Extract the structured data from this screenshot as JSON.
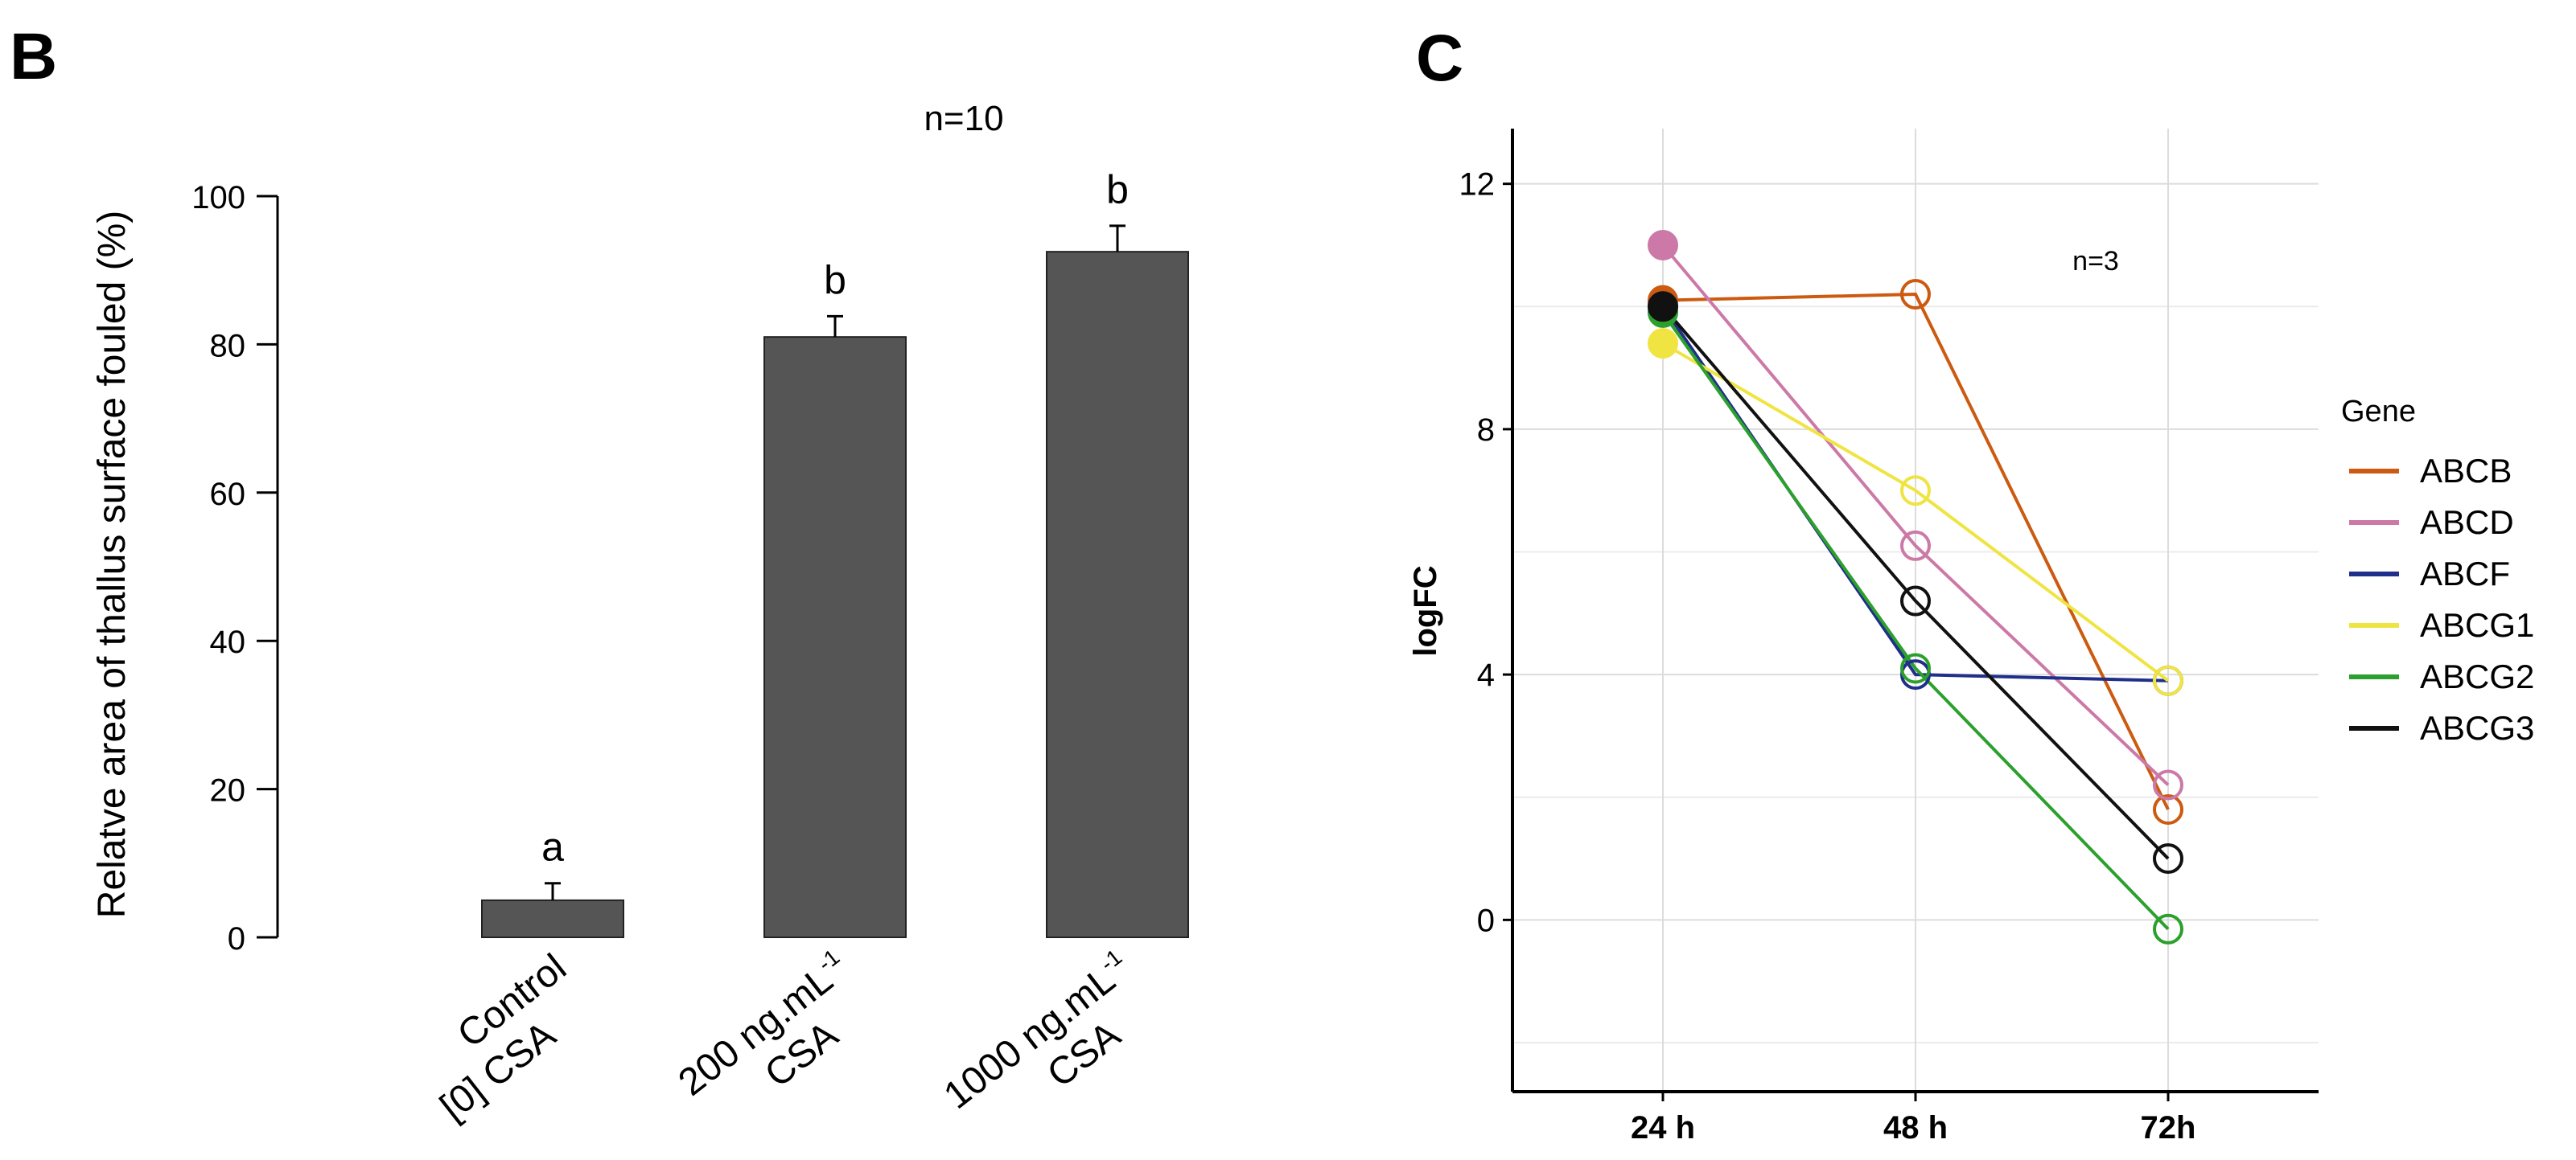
{
  "chart_data": [
    {
      "type": "bar",
      "panel_label": "B",
      "annotation": "n=10",
      "ylabel": "Relatve area of thallus surface fouled (%)",
      "ylim": [
        0,
        100
      ],
      "yticks": [
        0,
        20,
        40,
        60,
        80,
        100
      ],
      "categories": [
        {
          "line1": "Control",
          "line2": "[0] CSA"
        },
        {
          "line1": "200 ng.mL",
          "sup": "-1",
          "line2": "CSA"
        },
        {
          "line1": "1000 ng.mL",
          "sup": "-1",
          "line2": "CSA"
        }
      ],
      "values": [
        5,
        81,
        92.5
      ],
      "errors": [
        2.3,
        2.8,
        3.5
      ],
      "significance": [
        "a",
        "b",
        "b"
      ],
      "bar_color": "#555555"
    },
    {
      "type": "line",
      "panel_label": "C",
      "annotation": "n=3",
      "ylabel": "logFC",
      "ylim": [
        -2.8,
        12.9
      ],
      "yticks": [
        0,
        4,
        8,
        12
      ],
      "x": [
        "24 h",
        "48 h",
        "72h"
      ],
      "legend_title": "Gene",
      "legend_position": "right",
      "grid": true,
      "series": [
        {
          "name": "ABCB",
          "color": "#cc5a10",
          "values": [
            10.1,
            10.2,
            1.8
          ]
        },
        {
          "name": "ABCD",
          "color": "#cc79a7",
          "values": [
            11.0,
            6.1,
            2.2
          ]
        },
        {
          "name": "ABCF",
          "color": "#1f2f8a",
          "values": [
            10.0,
            4.0,
            3.9
          ]
        },
        {
          "name": "ABCG1",
          "color": "#f0e442",
          "values": [
            9.4,
            7.0,
            3.9
          ]
        },
        {
          "name": "ABCG2",
          "color": "#2ca02c",
          "values": [
            9.9,
            4.1,
            -0.15
          ]
        },
        {
          "name": "ABCG3",
          "color": "#111111",
          "values": [
            10.0,
            5.2,
            1.0
          ]
        }
      ]
    }
  ]
}
